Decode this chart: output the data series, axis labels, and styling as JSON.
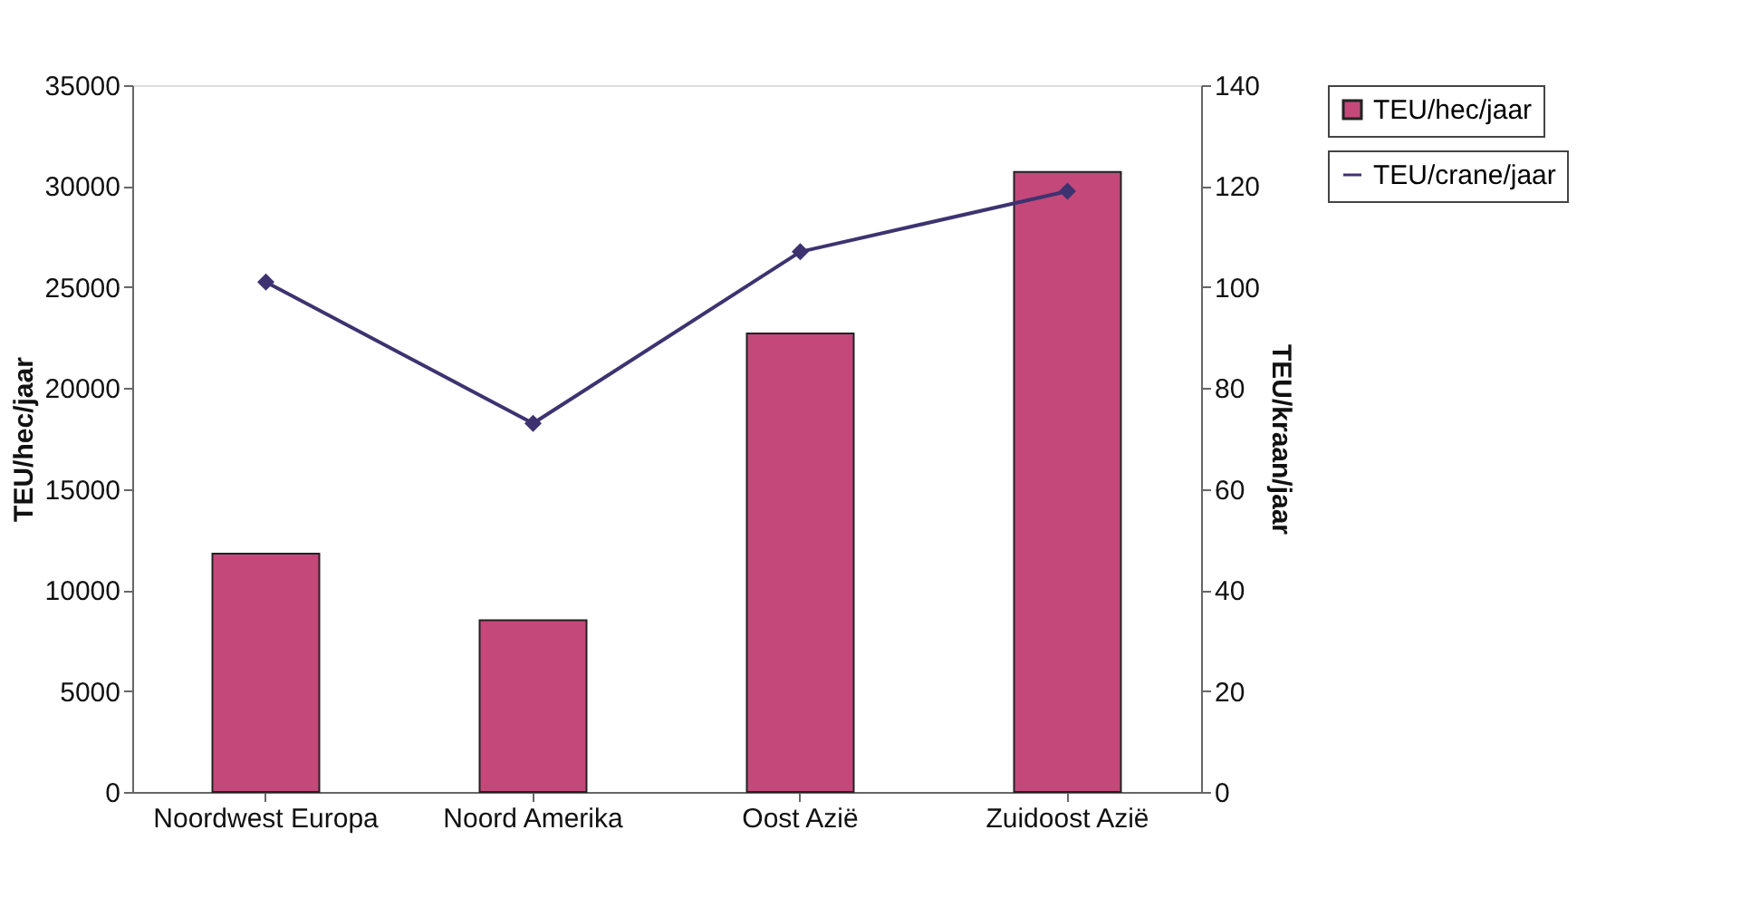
{
  "chart_data": {
    "type": "bar",
    "categories": [
      "Noordwest Europa",
      "Noord Amerika",
      "Oost Azië",
      "Zuidoost Azië"
    ],
    "ylabel": "TEU/hec/jaar",
    "y2label": "TEU/kraan/jaar",
    "ylim": [
      0,
      35000
    ],
    "yticks": [
      0,
      5000,
      10000,
      15000,
      20000,
      25000,
      30000,
      35000
    ],
    "y2lim": [
      0,
      140
    ],
    "y2ticks": [
      0,
      20,
      40,
      60,
      80,
      100,
      120,
      140
    ],
    "series": [
      {
        "name": "TEU/hec/jaar",
        "color": "#c4487a",
        "values": [
          11800,
          8500,
          22700,
          30700
        ]
      },
      {
        "name": "TEU/crane/jaar",
        "type": "line",
        "axis": "y2",
        "color": "#3e3370",
        "marker": "diamond",
        "values": [
          101,
          73,
          107,
          119
        ]
      }
    ],
    "grid": false,
    "legend": "right"
  }
}
